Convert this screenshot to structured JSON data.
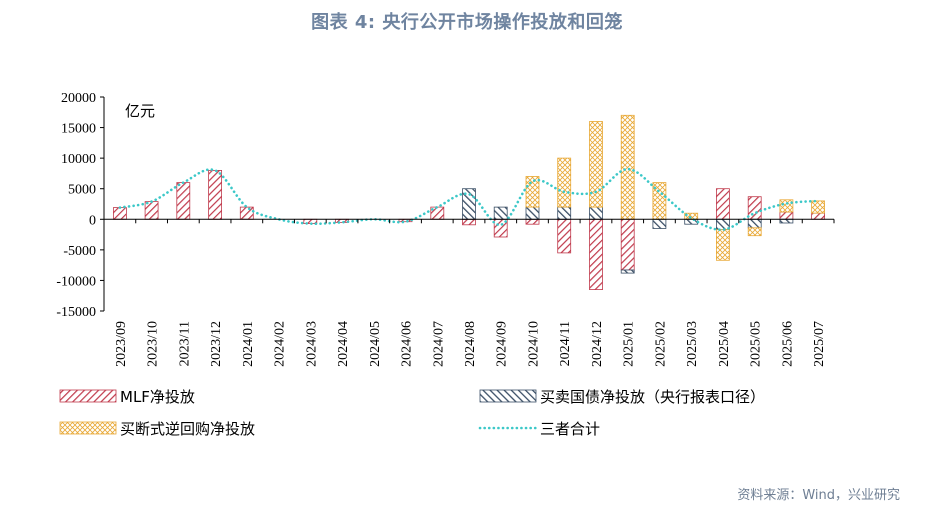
{
  "page_title": "图表 4:  央行公开市场操作投放和回笼",
  "source": "资料来源：Wind，兴业研究",
  "chart_data": {
    "type": "bar",
    "stacked": true,
    "unit_label": "亿元",
    "categories": [
      "2023/09",
      "2023/10",
      "2023/11",
      "2023/12",
      "2024/01",
      "2024/02",
      "2024/03",
      "2024/04",
      "2024/05",
      "2024/06",
      "2024/07",
      "2024/08",
      "2024/09",
      "2024/10",
      "2024/11",
      "2024/12",
      "2025/01",
      "2025/02",
      "2025/03",
      "2025/04",
      "2025/05",
      "2025/06",
      "2025/07"
    ],
    "y_ticks": [
      20000,
      15000,
      10000,
      5000,
      0,
      -5000,
      -10000,
      -15000
    ],
    "y_tick_labels": [
      "20000",
      "15000",
      "10000",
      "5000",
      "0",
      "-5000",
      "-10000",
      "-15000"
    ],
    "ylim": [
      -15000,
      20000
    ],
    "series": [
      {
        "name": "MLF净投放",
        "color": "#c0394b",
        "pattern": "diagonal",
        "values": [
          1910,
          2890,
          6000,
          8000,
          2000,
          0,
          -700,
          -500,
          0,
          -400,
          2000,
          -900,
          -2900,
          -800,
          -5500,
          -11500,
          -8300,
          0,
          0,
          5000,
          3700,
          1180,
          1000
        ]
      },
      {
        "name": "买卖国债净投放（央行报表口径）",
        "color": "#3b4f66",
        "pattern": "diagonal-dark",
        "values": [
          0,
          0,
          0,
          0,
          0,
          0,
          0,
          0,
          0,
          0,
          0,
          5000,
          2000,
          2000,
          2000,
          2000,
          -500,
          -1500,
          -800,
          -1700,
          -1400,
          -600,
          0
        ]
      },
      {
        "name": "买断式逆回购净投放",
        "color": "#e8a835",
        "pattern": "crosshatch",
        "values": [
          0,
          0,
          0,
          0,
          0,
          0,
          0,
          0,
          0,
          0,
          0,
          0,
          0,
          5000,
          8000,
          14000,
          17000,
          6000,
          1000,
          -5000,
          -1300,
          2000,
          2000
        ]
      },
      {
        "name": "三者合计",
        "color": "#3cc8c8",
        "type": "line",
        "style": "dotted",
        "values": [
          1910,
          2890,
          6000,
          8000,
          2000,
          0,
          -700,
          -500,
          0,
          -400,
          2000,
          4100,
          -900,
          6200,
          4500,
          4500,
          8200,
          4500,
          200,
          -1700,
          1000,
          2580,
          3000
        ]
      }
    ],
    "legend": {
      "items": [
        "MLF净投放",
        "买卖国债净投放（央行报表口径）",
        "买断式逆回购净投放",
        "三者合计"
      ],
      "placement": "bottom"
    }
  }
}
